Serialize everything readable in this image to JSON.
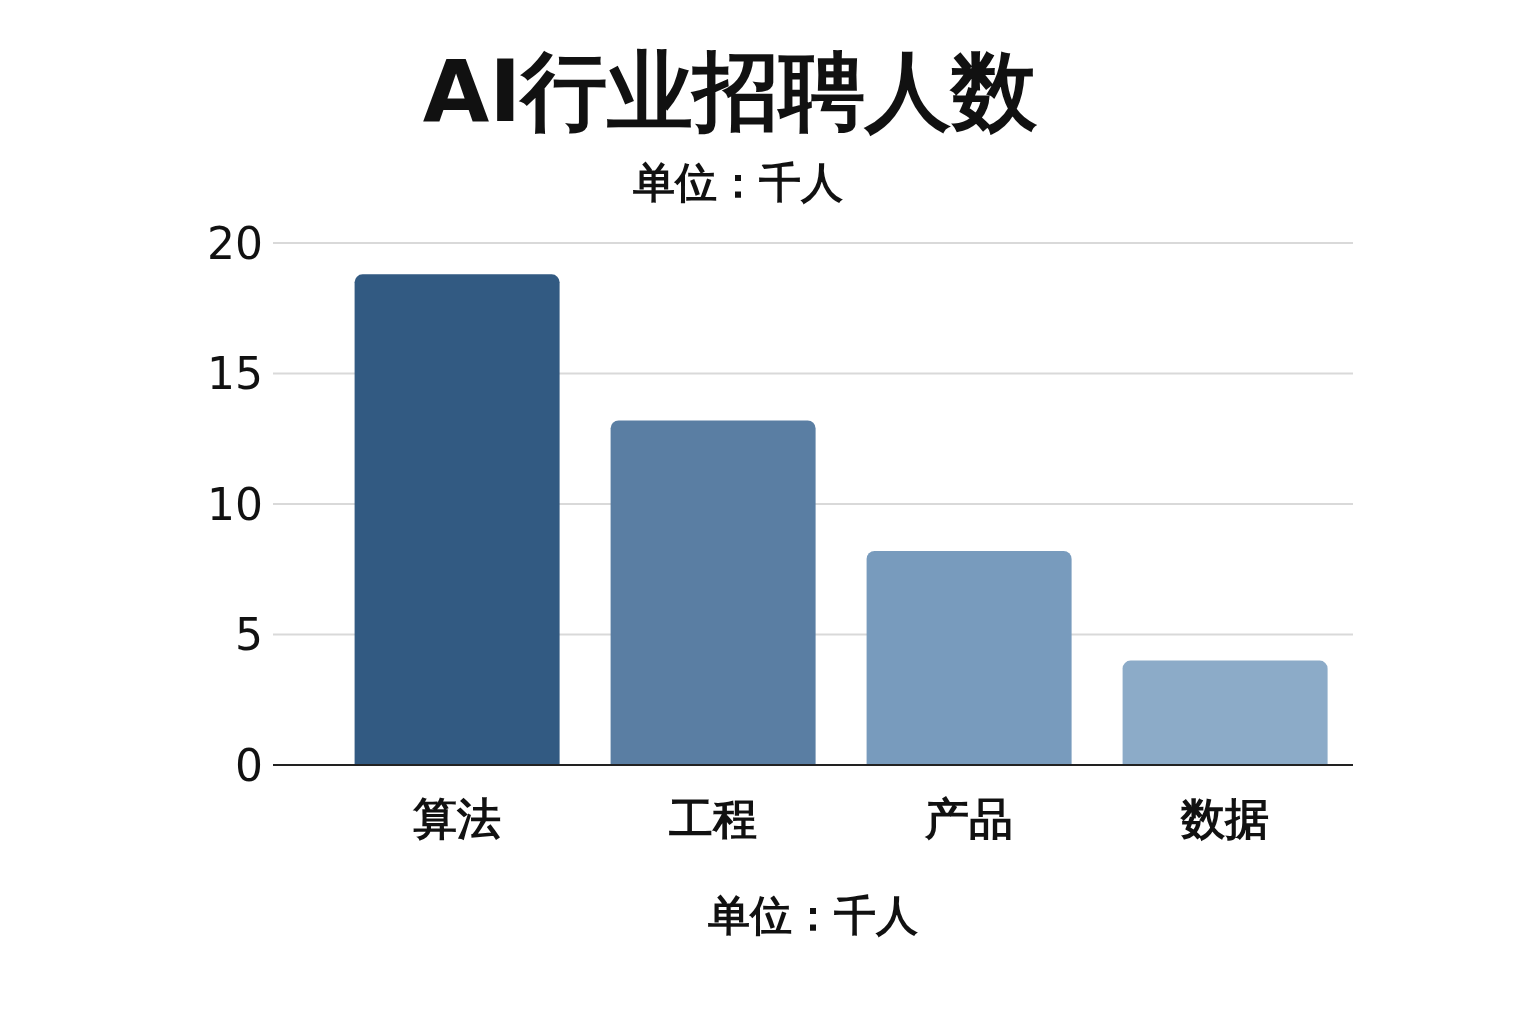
{
  "chart_data": {
    "type": "bar",
    "title": "AI行业招聘人数",
    "subtitle": "单位：千人",
    "xlabel": "单位：千人",
    "categories": [
      "算法",
      "工程",
      "产品",
      "数据"
    ],
    "values": [
      18.8,
      13.2,
      8.2,
      4.0
    ],
    "colors": [
      "#325a82",
      "#5a7ea3",
      "#789bbd",
      "#8cabc8"
    ],
    "ylim": [
      0,
      20
    ],
    "yticks": [
      0,
      5,
      10,
      15,
      20
    ],
    "grid": "y"
  }
}
